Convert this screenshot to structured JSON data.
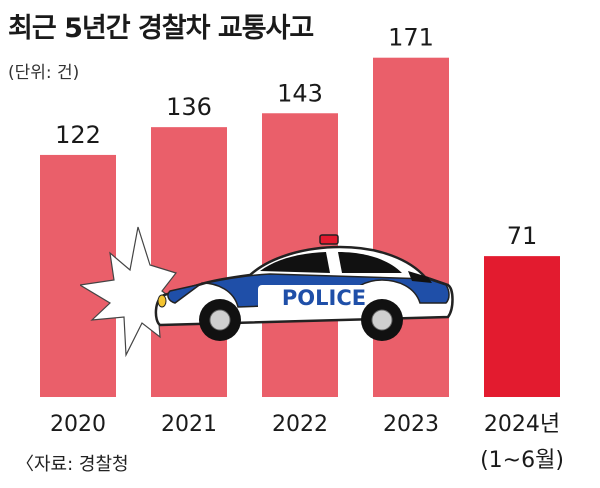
{
  "chart_data": {
    "type": "bar",
    "title": "최근 5년간 경찰차 교통사고",
    "unit_note": "(단위: 건)",
    "source": "〈자료: 경찰청",
    "categories": [
      "2020",
      "2021",
      "2022",
      "2023",
      "2024년"
    ],
    "category_sublabels": [
      "",
      "",
      "",
      "",
      "(1~6월)"
    ],
    "values": [
      122,
      136,
      143,
      171,
      71
    ],
    "value_labels": [
      "122",
      "136",
      "143",
      "171",
      "71"
    ],
    "colors": [
      "#ea5f6a",
      "#ea5f6a",
      "#ea5f6a",
      "#ea5f6a",
      "#e31b2f"
    ],
    "ylim": [
      0,
      190
    ],
    "grid": false,
    "legend": "none"
  },
  "illustration": {
    "car_text": "POLICE",
    "icon": "police-car-crash-icon"
  }
}
